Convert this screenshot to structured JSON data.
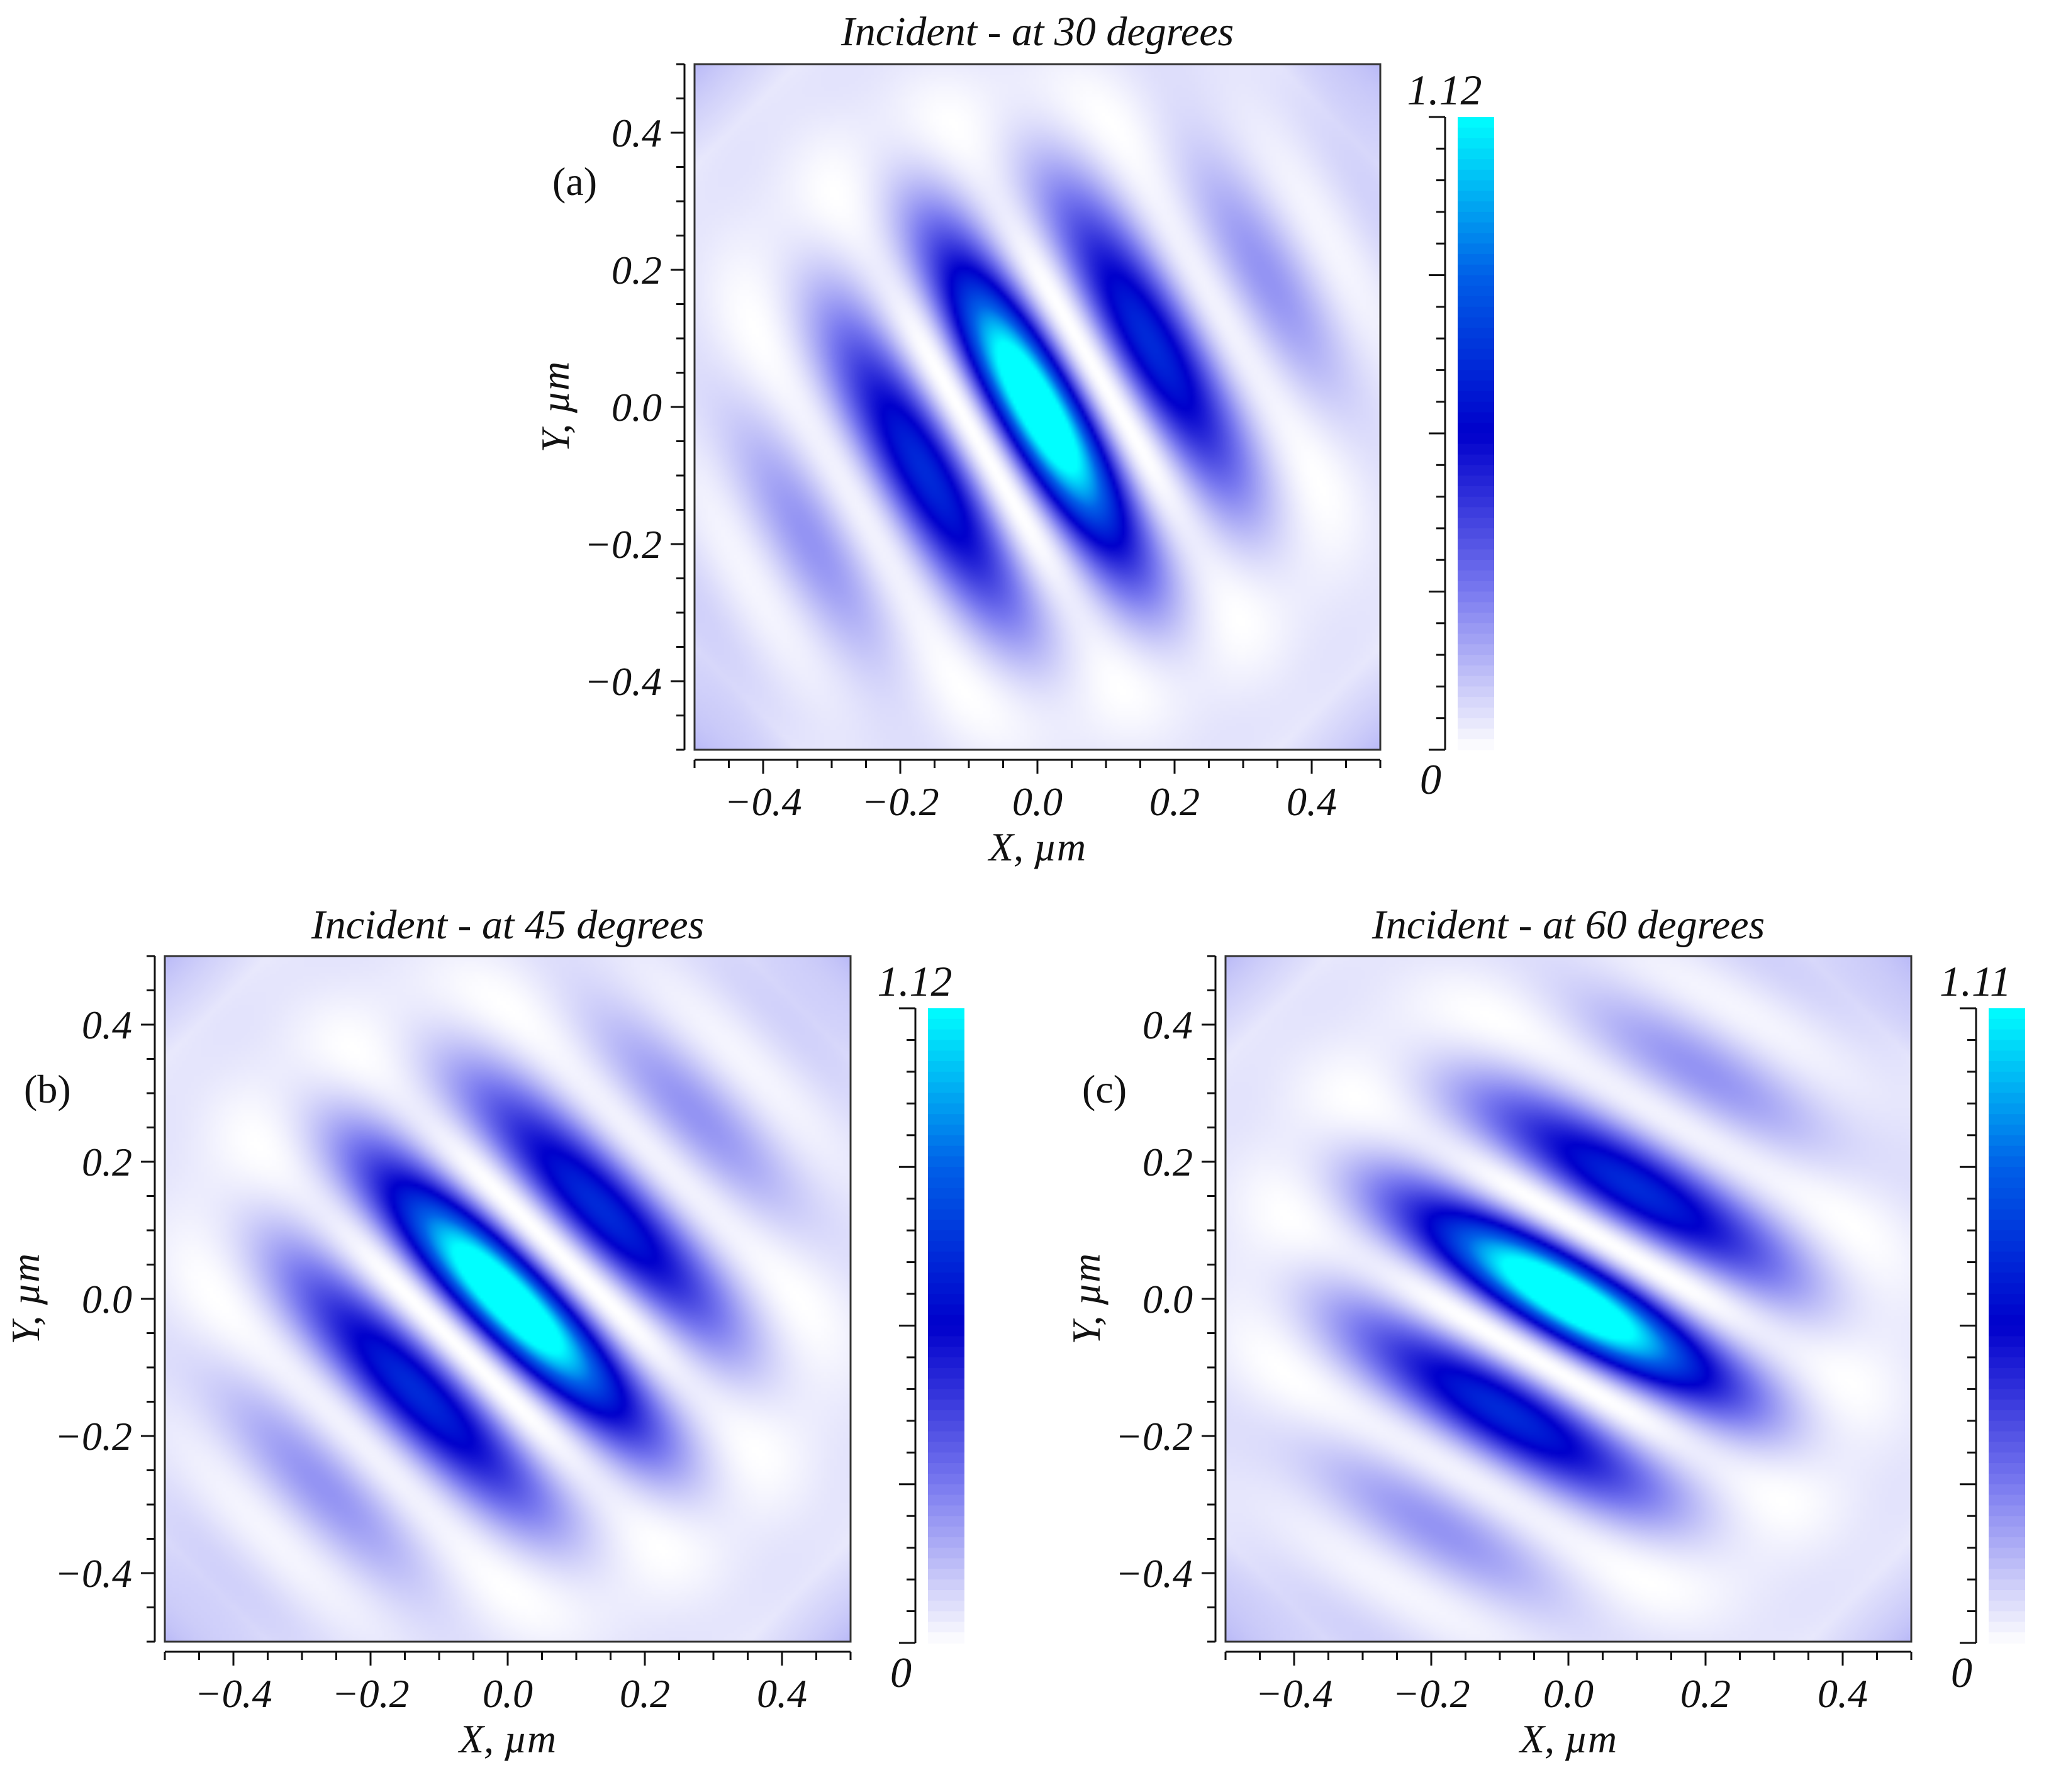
{
  "chart_data": [
    {
      "type": "heatmap",
      "panel": "(a)",
      "title": "Incident - at 30 degrees",
      "xlabel": "X, µm",
      "ylabel": "Y, µm",
      "xlim": [
        -0.5,
        0.5
      ],
      "ylim": [
        -0.5,
        0.5
      ],
      "xticks": [
        "−0.4",
        "−0.2",
        "0.0",
        "0.2",
        "0.4"
      ],
      "yticks": [
        "0.4",
        "0.2",
        "0.0",
        "−0.2",
        "−0.4"
      ],
      "colorbar": {
        "min": 0,
        "max": 1.12,
        "min_label": "0",
        "max_label": "1.12"
      },
      "colormap": [
        "#ffffff",
        "#7a7af0",
        "#0000cc",
        "#0060e8",
        "#00ffff"
      ],
      "field": {
        "angle_deg": 30,
        "peak": 1.12,
        "fringe_period": 0.2
      }
    },
    {
      "type": "heatmap",
      "panel": "(b)",
      "title": "Incident - at 45 degrees",
      "xlabel": "X, µm",
      "ylabel": "Y, µm",
      "xlim": [
        -0.5,
        0.5
      ],
      "ylim": [
        -0.5,
        0.5
      ],
      "xticks": [
        "−0.4",
        "−0.2",
        "0.0",
        "0.2",
        "0.4"
      ],
      "yticks": [
        "0.4",
        "0.2",
        "0.0",
        "−0.2",
        "−0.4"
      ],
      "colorbar": {
        "min": 0,
        "max": 1.12,
        "min_label": "0",
        "max_label": "1.12"
      },
      "colormap": [
        "#ffffff",
        "#7a7af0",
        "#0000cc",
        "#0060e8",
        "#00ffff"
      ],
      "field": {
        "angle_deg": 45,
        "peak": 1.12,
        "fringe_period": 0.2
      }
    },
    {
      "type": "heatmap",
      "panel": "(c)",
      "title": "Incident - at 60 degrees",
      "xlabel": "X, µm",
      "ylabel": "Y, µm",
      "xlim": [
        -0.5,
        0.5
      ],
      "ylim": [
        -0.5,
        0.5
      ],
      "xticks": [
        "−0.4",
        "−0.2",
        "0.0",
        "0.2",
        "0.4"
      ],
      "yticks": [
        "0.4",
        "0.2",
        "0.0",
        "−0.2",
        "−0.4"
      ],
      "colorbar": {
        "min": 0,
        "max": 1.11,
        "min_label": "0",
        "max_label": "1.11"
      },
      "colormap": [
        "#ffffff",
        "#7a7af0",
        "#0000cc",
        "#0060e8",
        "#00ffff"
      ],
      "field": {
        "angle_deg": 60,
        "peak": 1.11,
        "fringe_period": 0.2
      }
    }
  ]
}
